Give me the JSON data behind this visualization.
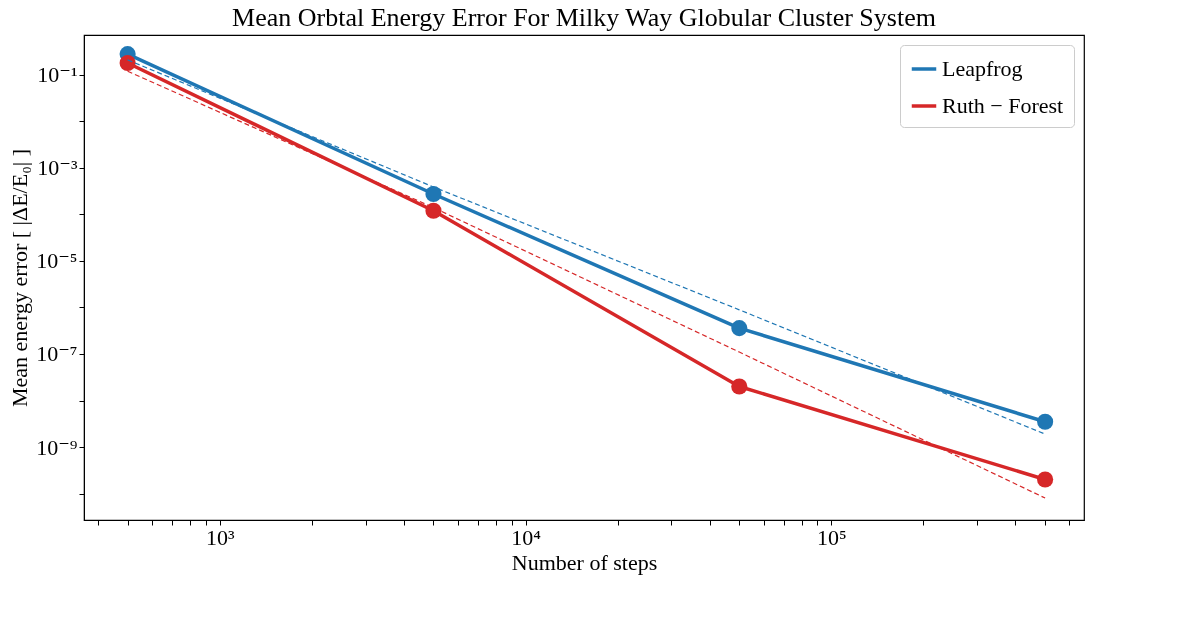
{
  "chart_data": {
    "type": "line",
    "title": "Mean Orbtal Energy Error For Milky Way Globular Cluster System",
    "xlabel": "Number of steps",
    "ylabel": "Mean energy error  [ |ΔE/E₀| ]",
    "log": "xy",
    "grid": false,
    "legend": "top right",
    "marker": "circle",
    "xlim": [
      360,
      670000
    ],
    "ylim": [
      2.7e-11,
      0.72
    ],
    "xticks": [
      {
        "value": 400,
        "label": null
      },
      {
        "value": 500,
        "label": null
      },
      {
        "value": 600,
        "label": null
      },
      {
        "value": 700,
        "label": null
      },
      {
        "value": 800,
        "label": null
      },
      {
        "value": 900,
        "label": null
      },
      {
        "value": 1000,
        "label": "10³"
      },
      {
        "value": 2000,
        "label": null
      },
      {
        "value": 3000,
        "label": null
      },
      {
        "value": 4000,
        "label": null
      },
      {
        "value": 5000,
        "label": null
      },
      {
        "value": 6000,
        "label": null
      },
      {
        "value": 7000,
        "label": null
      },
      {
        "value": 8000,
        "label": null
      },
      {
        "value": 9000,
        "label": null
      },
      {
        "value": 10000,
        "label": "10⁴"
      },
      {
        "value": 20000,
        "label": null
      },
      {
        "value": 30000,
        "label": null
      },
      {
        "value": 40000,
        "label": null
      },
      {
        "value": 50000,
        "label": null
      },
      {
        "value": 60000,
        "label": null
      },
      {
        "value": 70000,
        "label": null
      },
      {
        "value": 80000,
        "label": null
      },
      {
        "value": 90000,
        "label": null
      },
      {
        "value": 100000,
        "label": "10⁵"
      },
      {
        "value": 200000,
        "label": null
      },
      {
        "value": 300000,
        "label": null
      },
      {
        "value": 400000,
        "label": null
      },
      {
        "value": 500000,
        "label": null
      },
      {
        "value": 600000,
        "label": null
      }
    ],
    "yticks": [
      {
        "value": 1e-10,
        "label": null
      },
      {
        "value": 1e-09,
        "label": "10⁻⁹"
      },
      {
        "value": 1e-08,
        "label": null
      },
      {
        "value": 1e-07,
        "label": "10⁻⁷"
      },
      {
        "value": 1e-06,
        "label": null
      },
      {
        "value": 1e-05,
        "label": "10⁻⁵"
      },
      {
        "value": 0.0001,
        "label": null
      },
      {
        "value": 0.001,
        "label": "10⁻³"
      },
      {
        "value": 0.01,
        "label": null
      },
      {
        "value": 0.1,
        "label": "10⁻¹"
      }
    ],
    "x": [
      500,
      5000,
      50000,
      500000
    ],
    "series": [
      {
        "name": "Leapfrog",
        "color": "#1f77b4",
        "values": [
          0.28,
          0.000275,
          3.6e-07,
          3.5e-09
        ]
      },
      {
        "name": "Ruth − Forest",
        "color": "#d62728",
        "values": [
          0.18,
          0.00012,
          2e-08,
          2e-10
        ]
      },
      {
        "type": "line",
        "color": "#1f77b4",
        "line_style": "dashed",
        "marker": "none",
        "values": [
          0.21,
          0.00039,
          8.9e-07,
          1.9e-09
        ]
      },
      {
        "type": "line",
        "color": "#d62728",
        "line_style": "dashed",
        "marker": "none",
        "values": [
          0.12,
          0.00014,
          1.1e-07,
          8e-11
        ]
      }
    ]
  }
}
